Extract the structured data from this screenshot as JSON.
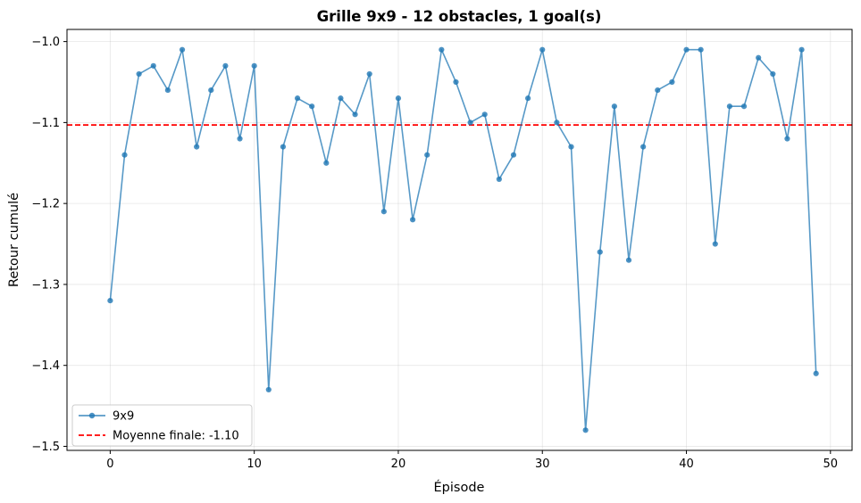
{
  "chart_data": {
    "type": "line",
    "title": "Grille 9x9 - 12 obstacles, 1 goal(s)",
    "xlabel": "Épisode",
    "ylabel": "Retour cumulé",
    "xlim": [
      -3,
      51.5
    ],
    "ylim": [
      -1.505,
      -0.985
    ],
    "xticks": [
      0,
      10,
      20,
      30,
      40,
      50
    ],
    "yticks": [
      -1.5,
      -1.4,
      -1.3,
      -1.2,
      -1.1,
      -1.0
    ],
    "xtick_labels": [
      "0",
      "10",
      "20",
      "30",
      "40",
      "50"
    ],
    "ytick_labels": [
      "−1.5",
      "−1.4",
      "−1.3",
      "−1.2",
      "−1.1",
      "−1.0"
    ],
    "grid": true,
    "legend_position": "lower-left",
    "series": [
      {
        "name": "9x9",
        "color": "#1f77b4",
        "marker": "circle",
        "x": [
          0,
          1,
          2,
          3,
          4,
          5,
          6,
          7,
          8,
          9,
          10,
          11,
          12,
          13,
          14,
          15,
          16,
          17,
          18,
          19,
          20,
          21,
          22,
          23,
          24,
          25,
          26,
          27,
          28,
          29,
          30,
          31,
          32,
          33,
          34,
          35,
          36,
          37,
          38,
          39,
          40,
          41,
          42,
          43,
          44,
          45,
          46,
          47,
          48,
          49
        ],
        "values": [
          -1.32,
          -1.14,
          -1.04,
          -1.03,
          -1.06,
          -1.01,
          -1.13,
          -1.06,
          -1.03,
          -1.12,
          -1.03,
          -1.43,
          -1.13,
          -1.07,
          -1.08,
          -1.15,
          -1.07,
          -1.09,
          -1.04,
          -1.21,
          -1.07,
          -1.22,
          -1.14,
          -1.01,
          -1.05,
          -1.1,
          -1.09,
          -1.17,
          -1.14,
          -1.07,
          -1.01,
          -1.1,
          -1.13,
          -1.48,
          -1.26,
          -1.08,
          -1.27,
          -1.13,
          -1.06,
          -1.05,
          -1.01,
          -1.01,
          -1.25,
          -1.08,
          -1.08,
          -1.02,
          -1.04,
          -1.12,
          -1.01,
          -1.41
        ]
      }
    ],
    "reference_line": {
      "name": "Moyenne finale: -1.10",
      "value": -1.103,
      "color": "#ff0000",
      "style": "dashed"
    }
  }
}
